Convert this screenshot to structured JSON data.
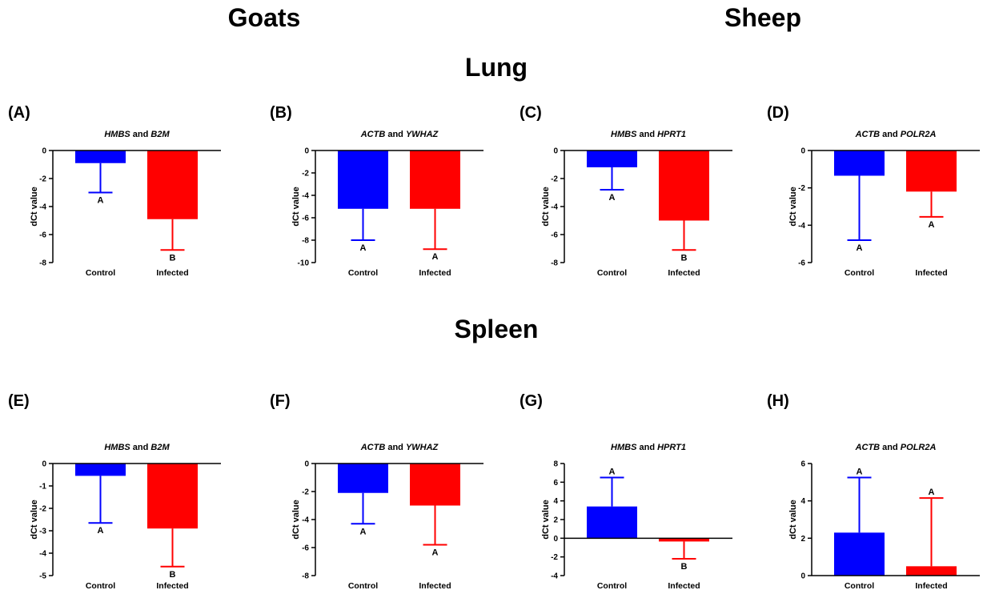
{
  "headings": {
    "goats": "Goats",
    "sheep": "Sheep",
    "lung": "Lung",
    "spleen": "Spleen"
  },
  "colors": {
    "control": "#0000ff",
    "infected": "#ff0000"
  },
  "chart_data": [
    {
      "panel": "(A)",
      "type": "bar",
      "title": [
        {
          "t": "HMBS",
          "i": true
        },
        {
          "t": " and ",
          "i": false
        },
        {
          "t": "B2M",
          "i": true
        }
      ],
      "ylabel": "dCt value",
      "ylim": [
        -8,
        0
      ],
      "yticks": [
        0,
        -2,
        -4,
        -6,
        -8
      ],
      "categories": [
        "Control",
        "Infected"
      ],
      "values": [
        -0.9,
        -4.9
      ],
      "error_ends": [
        -3.0,
        -7.1
      ],
      "letters": [
        "A",
        "B"
      ]
    },
    {
      "panel": "(B)",
      "type": "bar",
      "title": [
        {
          "t": "ACTB",
          "i": true
        },
        {
          "t": " and ",
          "i": false
        },
        {
          "t": "YWHAZ",
          "i": true
        }
      ],
      "ylabel": "dCt value",
      "ylim": [
        -10,
        0
      ],
      "yticks": [
        0,
        -2,
        -4,
        -6,
        -8,
        -10
      ],
      "categories": [
        "Control",
        "Infected"
      ],
      "values": [
        -5.2,
        -5.2
      ],
      "error_ends": [
        -8.0,
        -8.8
      ],
      "letters": [
        "A",
        "A"
      ]
    },
    {
      "panel": "(C)",
      "type": "bar",
      "title": [
        {
          "t": "HMBS",
          "i": true
        },
        {
          "t": " and ",
          "i": false
        },
        {
          "t": "HPRT1",
          "i": true
        }
      ],
      "ylabel": "dCt value",
      "ylim": [
        -8,
        0
      ],
      "yticks": [
        0,
        -2,
        -4,
        -6,
        -8
      ],
      "categories": [
        "Control",
        "Infected"
      ],
      "values": [
        -1.2,
        -5.0
      ],
      "error_ends": [
        -2.8,
        -7.1
      ],
      "letters": [
        "A",
        "B"
      ]
    },
    {
      "panel": "(D)",
      "type": "bar",
      "title": [
        {
          "t": "ACTB",
          "i": true
        },
        {
          "t": " and ",
          "i": false
        },
        {
          "t": "POLR2A",
          "i": true
        }
      ],
      "ylabel": "dCt value",
      "ylim": [
        -6,
        0
      ],
      "yticks": [
        0,
        -2,
        -4,
        -6
      ],
      "categories": [
        "Control",
        "Infected"
      ],
      "values": [
        -1.35,
        -2.2
      ],
      "error_ends": [
        -4.8,
        -3.55
      ],
      "letters": [
        "A",
        "A"
      ]
    },
    {
      "panel": "(E)",
      "type": "bar",
      "title": [
        {
          "t": "HMBS",
          "i": true
        },
        {
          "t": " and ",
          "i": false
        },
        {
          "t": "B2M",
          "i": true
        }
      ],
      "ylabel": "dCt value",
      "ylim": [
        -5,
        0
      ],
      "yticks": [
        0,
        -1,
        -2,
        -3,
        -4,
        -5
      ],
      "categories": [
        "Control",
        "Infected"
      ],
      "values": [
        -0.55,
        -2.9
      ],
      "error_ends": [
        -2.65,
        -4.6
      ],
      "letters": [
        "A",
        "B"
      ]
    },
    {
      "panel": "(F)",
      "type": "bar",
      "title": [
        {
          "t": "ACTB",
          "i": true
        },
        {
          "t": " and ",
          "i": false
        },
        {
          "t": "YWHAZ",
          "i": true
        }
      ],
      "ylabel": "dCt value",
      "ylim": [
        -8,
        0
      ],
      "yticks": [
        0,
        -2,
        -4,
        -6,
        -8
      ],
      "categories": [
        "Control",
        "Infected"
      ],
      "values": [
        -2.1,
        -3.0
      ],
      "error_ends": [
        -4.3,
        -5.8
      ],
      "letters": [
        "A",
        "A"
      ]
    },
    {
      "panel": "(G)",
      "type": "bar",
      "title": [
        {
          "t": "HMBS",
          "i": true
        },
        {
          "t": " and ",
          "i": false
        },
        {
          "t": "HPRT1",
          "i": true
        }
      ],
      "ylabel": "dCt value",
      "ylim": [
        -4,
        8
      ],
      "yticks": [
        8,
        6,
        4,
        2,
        0,
        -2,
        -4
      ],
      "categories": [
        "Control",
        "Infected"
      ],
      "values": [
        3.4,
        -0.35
      ],
      "error_ends": [
        6.5,
        -2.2
      ],
      "letters": [
        "A",
        "B"
      ]
    },
    {
      "panel": "(H)",
      "type": "bar",
      "title": [
        {
          "t": "ACTB",
          "i": true
        },
        {
          "t": " and ",
          "i": false
        },
        {
          "t": "POLR2A",
          "i": true
        }
      ],
      "ylabel": "dCt value",
      "ylim": [
        0,
        6
      ],
      "yticks": [
        6,
        4,
        2,
        0
      ],
      "categories": [
        "Control",
        "Infected"
      ],
      "values": [
        2.3,
        0.5
      ],
      "error_ends": [
        5.25,
        4.15
      ],
      "letters": [
        "A",
        "A"
      ]
    }
  ]
}
